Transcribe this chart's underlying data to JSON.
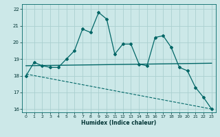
{
  "xlabel": "Humidex (Indice chaleur)",
  "bg_color": "#cce8e8",
  "grid_color": "#aad0d0",
  "line_color": "#006666",
  "x": [
    0,
    1,
    2,
    3,
    4,
    5,
    6,
    7,
    8,
    9,
    10,
    11,
    12,
    13,
    14,
    15,
    16,
    17,
    18,
    19,
    20,
    21,
    22,
    23
  ],
  "y_main": [
    18.0,
    18.8,
    18.6,
    18.5,
    18.5,
    19.0,
    19.5,
    20.8,
    20.6,
    21.8,
    21.4,
    19.3,
    19.9,
    19.9,
    18.7,
    18.6,
    20.3,
    20.4,
    19.7,
    18.5,
    18.3,
    17.3,
    16.7,
    16.0
  ],
  "y_hline_x": [
    0,
    23
  ],
  "y_hline_y": [
    18.6,
    18.75
  ],
  "y_trend_x": [
    0,
    23
  ],
  "y_trend_y": [
    18.1,
    16.0
  ],
  "ylim": [
    15.8,
    22.3
  ],
  "xlim": [
    -0.5,
    23.5
  ],
  "yticks": [
    16,
    17,
    18,
    19,
    20,
    21,
    22
  ],
  "xticks": [
    0,
    1,
    2,
    3,
    4,
    5,
    6,
    7,
    8,
    9,
    10,
    11,
    12,
    13,
    14,
    15,
    16,
    17,
    18,
    19,
    20,
    21,
    22,
    23
  ]
}
